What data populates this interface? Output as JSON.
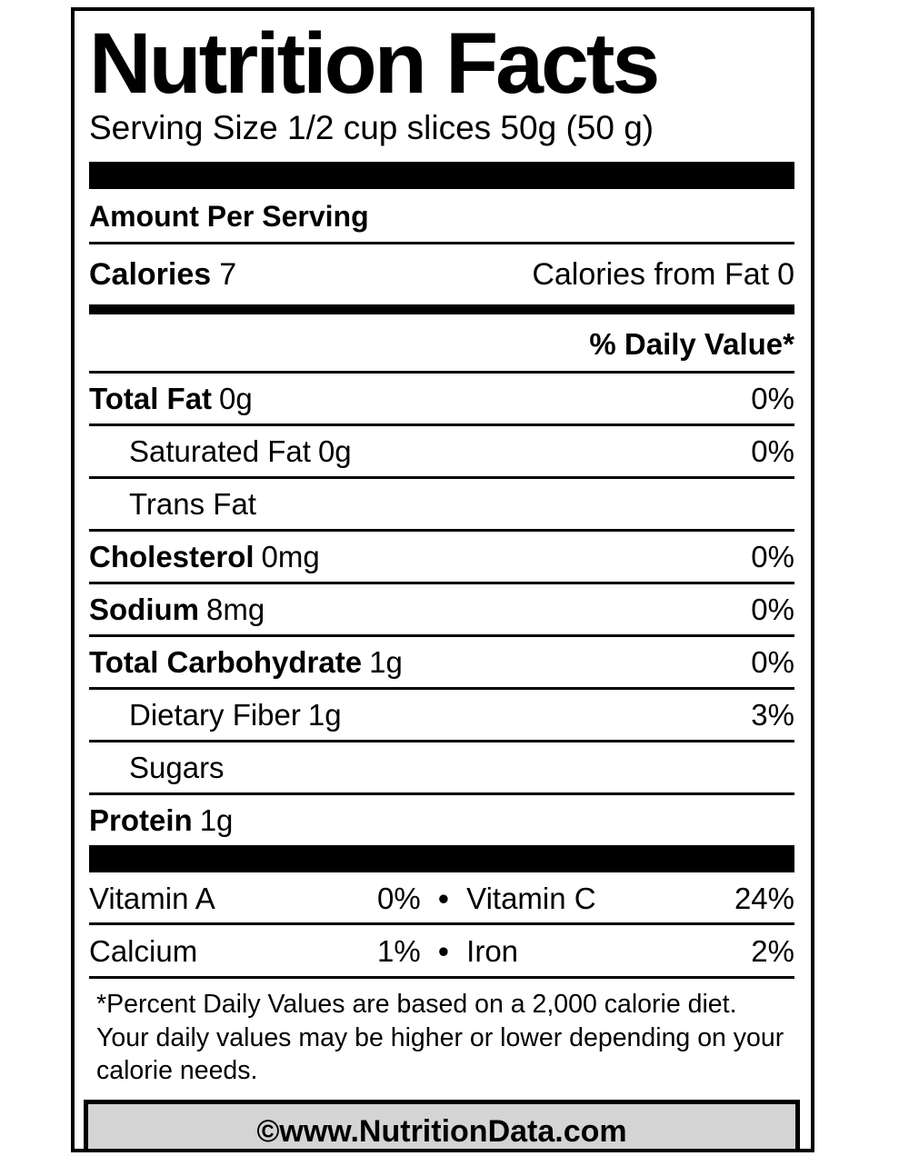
{
  "label": {
    "title": "Nutrition Facts",
    "serving_size": "Serving Size 1/2 cup slices 50g (50 g)",
    "amount_per_serving": "Amount Per Serving",
    "calories": {
      "label": "Calories",
      "value": "7",
      "from_fat_label": "Calories from Fat",
      "from_fat_value": "0"
    },
    "daily_value_header": "% Daily Value*",
    "nutrients": [
      {
        "name": "Total Fat",
        "amount": "0g",
        "dv": "0%"
      },
      {
        "name": "Saturated Fat",
        "amount": "0g",
        "dv": "0%"
      },
      {
        "name": "Trans Fat",
        "amount": "",
        "dv": ""
      },
      {
        "name": "Cholesterol",
        "amount": "0mg",
        "dv": "0%"
      },
      {
        "name": "Sodium",
        "amount": "8mg",
        "dv": "0%"
      },
      {
        "name": "Total Carbohydrate",
        "amount": "1g",
        "dv": "0%"
      },
      {
        "name": "Dietary Fiber",
        "amount": "1g",
        "dv": "3%"
      },
      {
        "name": "Sugars",
        "amount": "",
        "dv": ""
      },
      {
        "name": "Protein",
        "amount": "1g",
        "dv": ""
      }
    ],
    "bullet": "•",
    "vitamins": [
      {
        "left_name": "Vitamin A",
        "left_value": "0%",
        "right_name": "Vitamin C",
        "right_value": "24%"
      },
      {
        "left_name": "Calcium",
        "left_value": "1%",
        "right_name": "Iron",
        "right_value": "2%"
      }
    ],
    "footnote": "*Percent Daily Values are based on a 2,000 calorie diet. Your daily values may be higher or lower depending on your calorie needs.",
    "footer": "©www.NutritionData.com",
    "colors": {
      "text": "#000000",
      "background": "#ffffff",
      "footer_background": "#d4d4d4"
    }
  }
}
